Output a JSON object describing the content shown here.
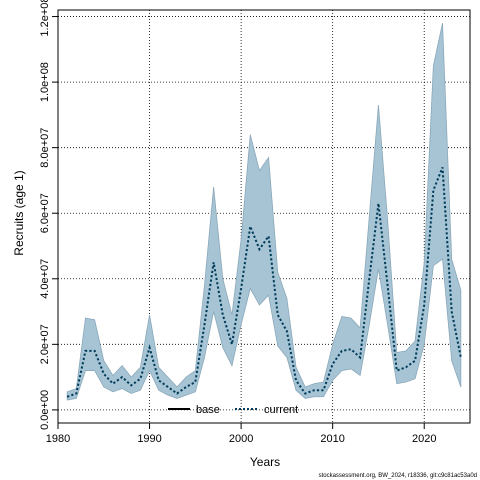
{
  "chart_data": {
    "type": "area",
    "xlabel": "Years",
    "ylabel": "Recruits (age 1)",
    "xlim": [
      1980,
      2025
    ],
    "ylim": [
      -4000000,
      122000000
    ],
    "x_ticks": [
      1980,
      1990,
      2000,
      2010,
      2020
    ],
    "x_tick_labels": [
      "1980",
      "1990",
      "2000",
      "2010",
      "2020"
    ],
    "y_ticks": [
      0,
      20000000,
      40000000,
      60000000,
      80000000,
      100000000,
      120000000
    ],
    "y_tick_labels": [
      "0.0e+00",
      "2.0e+07",
      "4.0e+07",
      "6.0e+07",
      "8.0e+07",
      "1.0e+08",
      "1.2e+08"
    ],
    "grid": true,
    "legend_position": "bottom-center",
    "years": [
      1981,
      1982,
      1983,
      1984,
      1985,
      1986,
      1987,
      1988,
      1989,
      1990,
      1991,
      1992,
      1993,
      1994,
      1995,
      1996,
      1997,
      1998,
      1999,
      2000,
      2001,
      2002,
      2003,
      2004,
      2005,
      2006,
      2007,
      2008,
      2009,
      2010,
      2011,
      2012,
      2013,
      2014,
      2015,
      2016,
      2017,
      2018,
      2019,
      2020,
      2021,
      2022,
      2023,
      2024
    ],
    "series": [
      {
        "name": "base",
        "values": [
          4000000,
          5000000,
          18000000,
          18000000,
          11000000,
          8000000,
          10000000,
          7500000,
          9500000,
          19000000,
          9000000,
          7000000,
          5000000,
          7000000,
          8500000,
          26000000,
          45000000,
          29000000,
          20000000,
          37000000,
          56000000,
          49000000,
          53000000,
          29000000,
          24000000,
          9000000,
          5000000,
          6000000,
          6000000,
          14000000,
          18000000,
          18500000,
          16000000,
          40000000,
          63000000,
          38000000,
          12000000,
          13000000,
          15000000,
          32000000,
          67000000,
          74000000,
          30000000,
          16000000
        ]
      },
      {
        "name": "current",
        "values": [
          4000000,
          5000000,
          18000000,
          18000000,
          11000000,
          8000000,
          10000000,
          7500000,
          9500000,
          19000000,
          9000000,
          7000000,
          5000000,
          7000000,
          8500000,
          26000000,
          45000000,
          29000000,
          20000000,
          37000000,
          56000000,
          49000000,
          53000000,
          29000000,
          24000000,
          9000000,
          5000000,
          6000000,
          6000000,
          14000000,
          18000000,
          18500000,
          16000000,
          40000000,
          63000000,
          38000000,
          12000000,
          13000000,
          15000000,
          32000000,
          67000000,
          74000000,
          30000000,
          16000000
        ]
      }
    ],
    "interval": {
      "lower": [
        3000000,
        3500000,
        12000000,
        12000000,
        7000000,
        5500000,
        6500000,
        5000000,
        6000000,
        12000000,
        6000000,
        4500000,
        3500000,
        4500000,
        5500000,
        16000000,
        30000000,
        19000000,
        13500000,
        26000000,
        37000000,
        32000000,
        35000000,
        19500000,
        16000000,
        6000000,
        3500000,
        4000000,
        4000000,
        9000000,
        12000000,
        12500000,
        10500000,
        26000000,
        43000000,
        26000000,
        8000000,
        8500000,
        9500000,
        20000000,
        44000000,
        46000000,
        15000000,
        7000000
      ],
      "upper": [
        5500000,
        6500000,
        28000000,
        27500000,
        15000000,
        10500000,
        13500000,
        10000000,
        13000000,
        29000000,
        13000000,
        10000000,
        7000000,
        10000000,
        12000000,
        38000000,
        68000000,
        40000000,
        29000000,
        52000000,
        84000000,
        73000000,
        77000000,
        42000000,
        34000000,
        13000000,
        7000000,
        8000000,
        8500000,
        20000000,
        28500000,
        28000000,
        25000000,
        59000000,
        93000000,
        58000000,
        17500000,
        18000000,
        21000000,
        45000000,
        105000000,
        118000000,
        46000000,
        36500000
      ]
    },
    "colors": {
      "band_fill": "#a6c4d4",
      "band_stroke": "#8aa8ba",
      "base_line": "#000000",
      "current_line": "#003c5a",
      "grid": "#000000"
    },
    "footer": "stockassessment.org, BW_2024, r18336, git:c9c81ac53a0d"
  }
}
